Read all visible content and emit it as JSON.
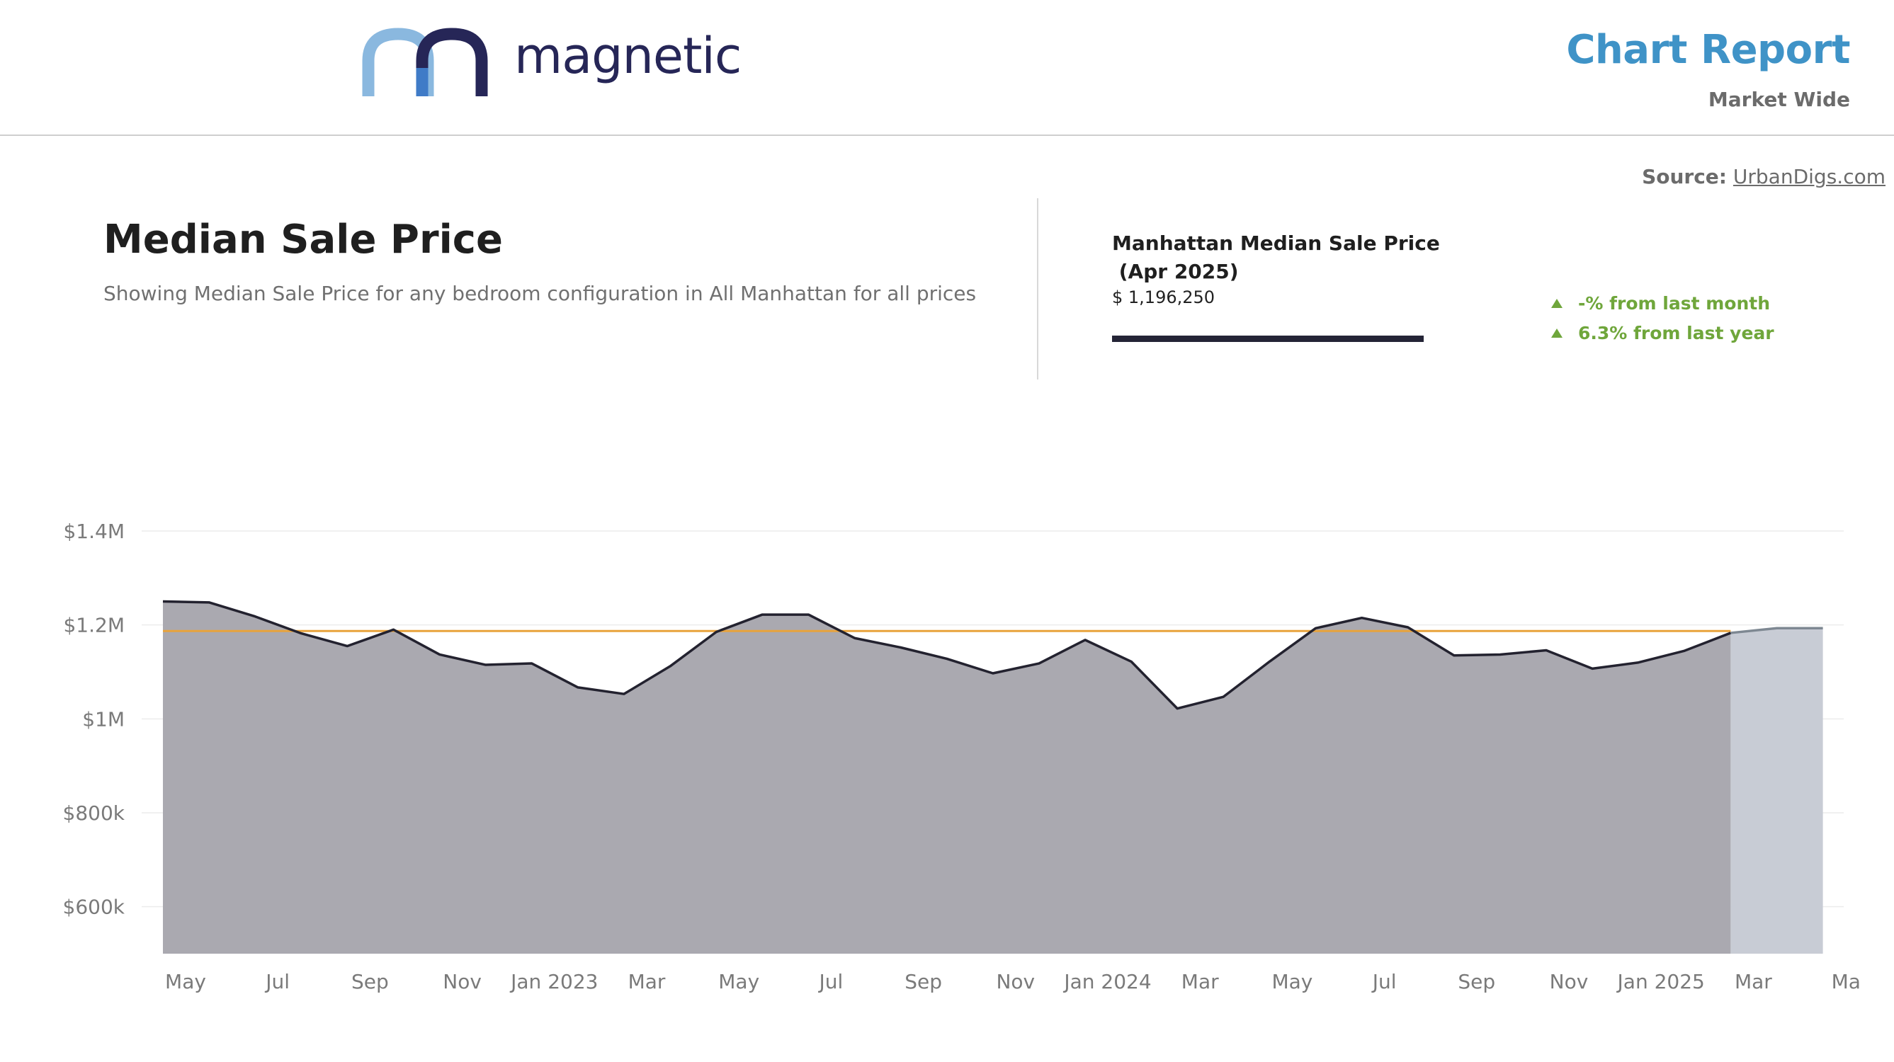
{
  "header": {
    "logo_text": "magnetic",
    "report_title": "Chart Report",
    "report_subtitle": "Market Wide"
  },
  "source": {
    "label": "Source:",
    "link_text": "UrbanDigs.com"
  },
  "intro": {
    "title": "Median Sale Price",
    "description": "Showing Median Sale Price for any bedroom configuration in All Manhattan for all prices"
  },
  "stats": {
    "title_line1": "Manhattan Median Sale Price",
    "title_line2": " (Apr 2025)",
    "value": "$ 1,196,250",
    "change_month": "-% from last month",
    "change_year": "6.3% from last year"
  },
  "colors": {
    "area_fill": "#aaa9b0",
    "projection_fill": "#c8ccd5",
    "line": "#23222f",
    "projection_line": "#7e8892",
    "average_line": "#e8a33c",
    "gridline": "#ececec",
    "change_up": "#6fa63b",
    "title_accent": "#3f93c7"
  },
  "chart_data": {
    "type": "area",
    "x_ticks": [
      "May",
      "Jul",
      "Sep",
      "Nov",
      "Jan 2023",
      "Mar",
      "May",
      "Jul",
      "Sep",
      "Nov",
      "Jan 2024",
      "Mar",
      "May",
      "Jul",
      "Sep",
      "Nov",
      "Jan 2025",
      "Mar",
      "Ma"
    ],
    "y_ticks": [
      "$600k",
      "$800k",
      "$1M",
      "$1.2M",
      "$1.4M"
    ],
    "y_tick_values": [
      600000,
      800000,
      1000000,
      1200000,
      1400000
    ],
    "ylim": [
      500000,
      1400000
    ],
    "average": 1187000,
    "series": [
      {
        "values": [
          1250000,
          1248000,
          1218000,
          1182000,
          1155000,
          1190000,
          1137000,
          1115000,
          1118000,
          1067000,
          1053000,
          1112000,
          1185000,
          1222000,
          1222000,
          1172000,
          1152000,
          1128000,
          1097000,
          1118000,
          1168000,
          1122000,
          1022000,
          1047000,
          1122000,
          1193000,
          1215000,
          1195000,
          1135000,
          1137000,
          1146000,
          1107000,
          1120000,
          1145000,
          1183000
        ]
      },
      {
        "projection": true,
        "values": [
          1183000,
          1193000,
          1193000
        ]
      }
    ]
  }
}
